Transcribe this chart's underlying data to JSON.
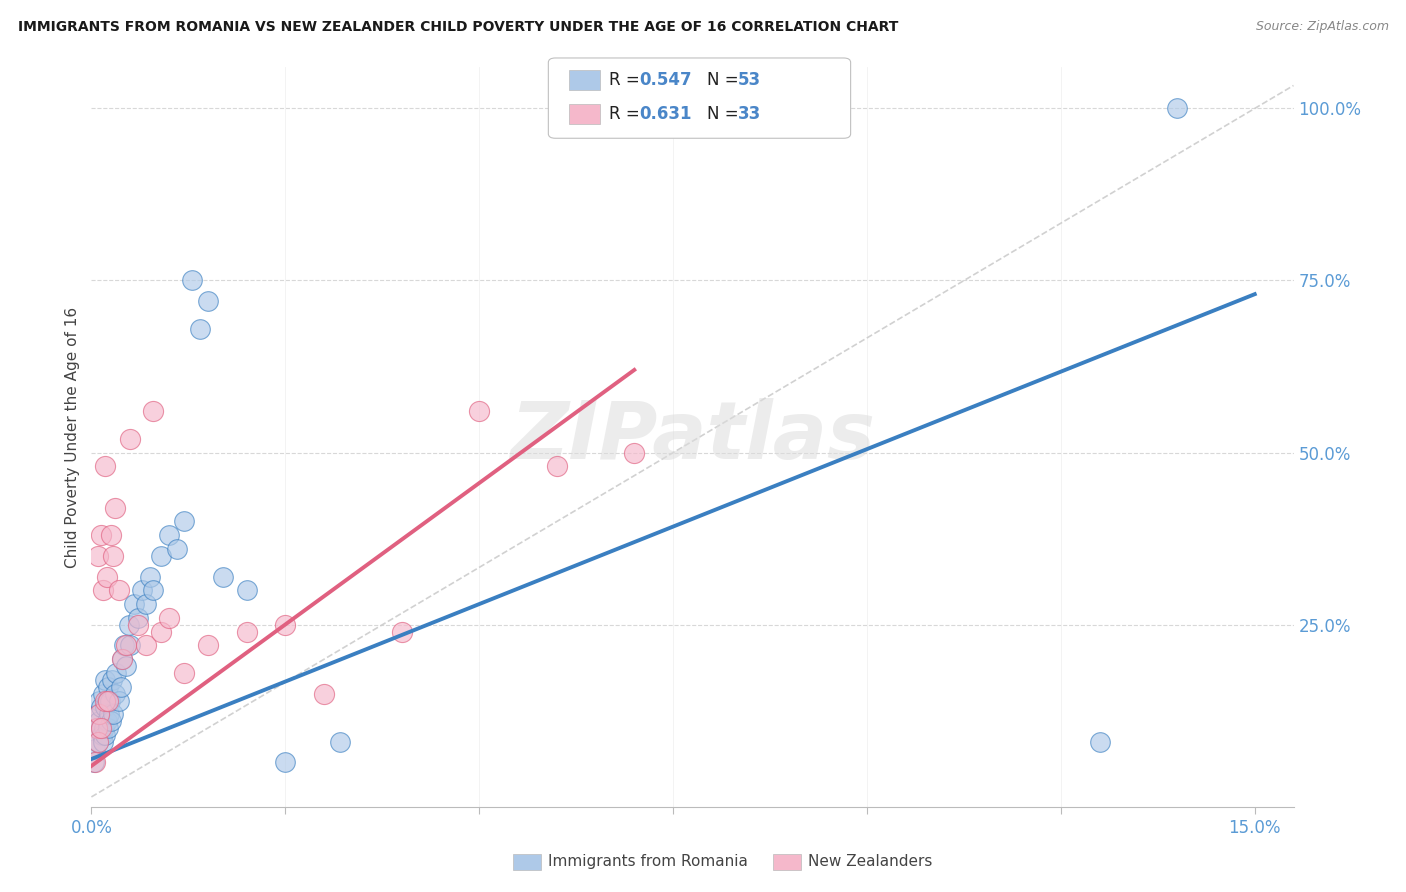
{
  "title": "IMMIGRANTS FROM ROMANIA VS NEW ZEALANDER CHILD POVERTY UNDER THE AGE OF 16 CORRELATION CHART",
  "source": "Source: ZipAtlas.com",
  "ylabel": "Child Poverty Under the Age of 16",
  "xlim": [
    0,
    0.155
  ],
  "ylim": [
    -0.015,
    1.06
  ],
  "color_blue": "#aec9e8",
  "color_pink": "#f5b8cb",
  "color_blue_line": "#3a7fc1",
  "color_pink_line": "#e06080",
  "color_diag": "#cccccc",
  "watermark": "ZIPatlas",
  "legend_r1": "0.547",
  "legend_n1": "53",
  "legend_r2": "0.631",
  "legend_n2": "33",
  "blue_x": [
    0.0003,
    0.0005,
    0.0007,
    0.0008,
    0.0008,
    0.001,
    0.001,
    0.0012,
    0.0013,
    0.0014,
    0.0015,
    0.0015,
    0.0016,
    0.0017,
    0.0018,
    0.0018,
    0.002,
    0.002,
    0.0022,
    0.0022,
    0.0023,
    0.0024,
    0.0025,
    0.0026,
    0.0028,
    0.003,
    0.0032,
    0.0035,
    0.0038,
    0.004,
    0.0042,
    0.0045,
    0.0048,
    0.005,
    0.0055,
    0.006,
    0.0065,
    0.007,
    0.0075,
    0.008,
    0.009,
    0.01,
    0.011,
    0.012,
    0.013,
    0.014,
    0.015,
    0.017,
    0.02,
    0.025,
    0.032,
    0.13,
    0.14
  ],
  "blue_y": [
    0.05,
    0.07,
    0.1,
    0.12,
    0.08,
    0.11,
    0.14,
    0.1,
    0.13,
    0.09,
    0.08,
    0.15,
    0.1,
    0.13,
    0.09,
    0.17,
    0.11,
    0.14,
    0.1,
    0.16,
    0.12,
    0.14,
    0.11,
    0.17,
    0.12,
    0.15,
    0.18,
    0.14,
    0.16,
    0.2,
    0.22,
    0.19,
    0.25,
    0.22,
    0.28,
    0.26,
    0.3,
    0.28,
    0.32,
    0.3,
    0.35,
    0.38,
    0.36,
    0.4,
    0.75,
    0.68,
    0.72,
    0.32,
    0.3,
    0.05,
    0.08,
    0.08,
    1.0
  ],
  "pink_x": [
    0.0005,
    0.0007,
    0.0008,
    0.0009,
    0.001,
    0.0012,
    0.0013,
    0.0015,
    0.0017,
    0.0018,
    0.002,
    0.0022,
    0.0025,
    0.0028,
    0.003,
    0.0035,
    0.004,
    0.0045,
    0.005,
    0.006,
    0.007,
    0.008,
    0.009,
    0.01,
    0.012,
    0.015,
    0.02,
    0.025,
    0.03,
    0.04,
    0.05,
    0.06,
    0.07
  ],
  "pink_y": [
    0.05,
    0.1,
    0.35,
    0.08,
    0.12,
    0.38,
    0.1,
    0.3,
    0.48,
    0.14,
    0.32,
    0.14,
    0.38,
    0.35,
    0.42,
    0.3,
    0.2,
    0.22,
    0.52,
    0.25,
    0.22,
    0.56,
    0.24,
    0.26,
    0.18,
    0.22,
    0.24,
    0.25,
    0.15,
    0.24,
    0.56,
    0.48,
    0.5
  ],
  "blue_trend_x0": 0.0,
  "blue_trend_y0": 0.055,
  "blue_trend_x1": 0.15,
  "blue_trend_y1": 0.73,
  "pink_trend_x0": 0.0,
  "pink_trend_y0": 0.045,
  "pink_trend_x1": 0.07,
  "pink_trend_y1": 0.62,
  "xticks": [
    0.0,
    0.025,
    0.05,
    0.075,
    0.1,
    0.125,
    0.15
  ],
  "xticklabels": [
    "0.0%",
    "",
    "",
    "",
    "",
    "",
    "15.0%"
  ],
  "yticks_right": [
    0.25,
    0.5,
    0.75,
    1.0
  ],
  "yticklabels_right": [
    "25.0%",
    "50.0%",
    "75.0%",
    "100.0%"
  ]
}
